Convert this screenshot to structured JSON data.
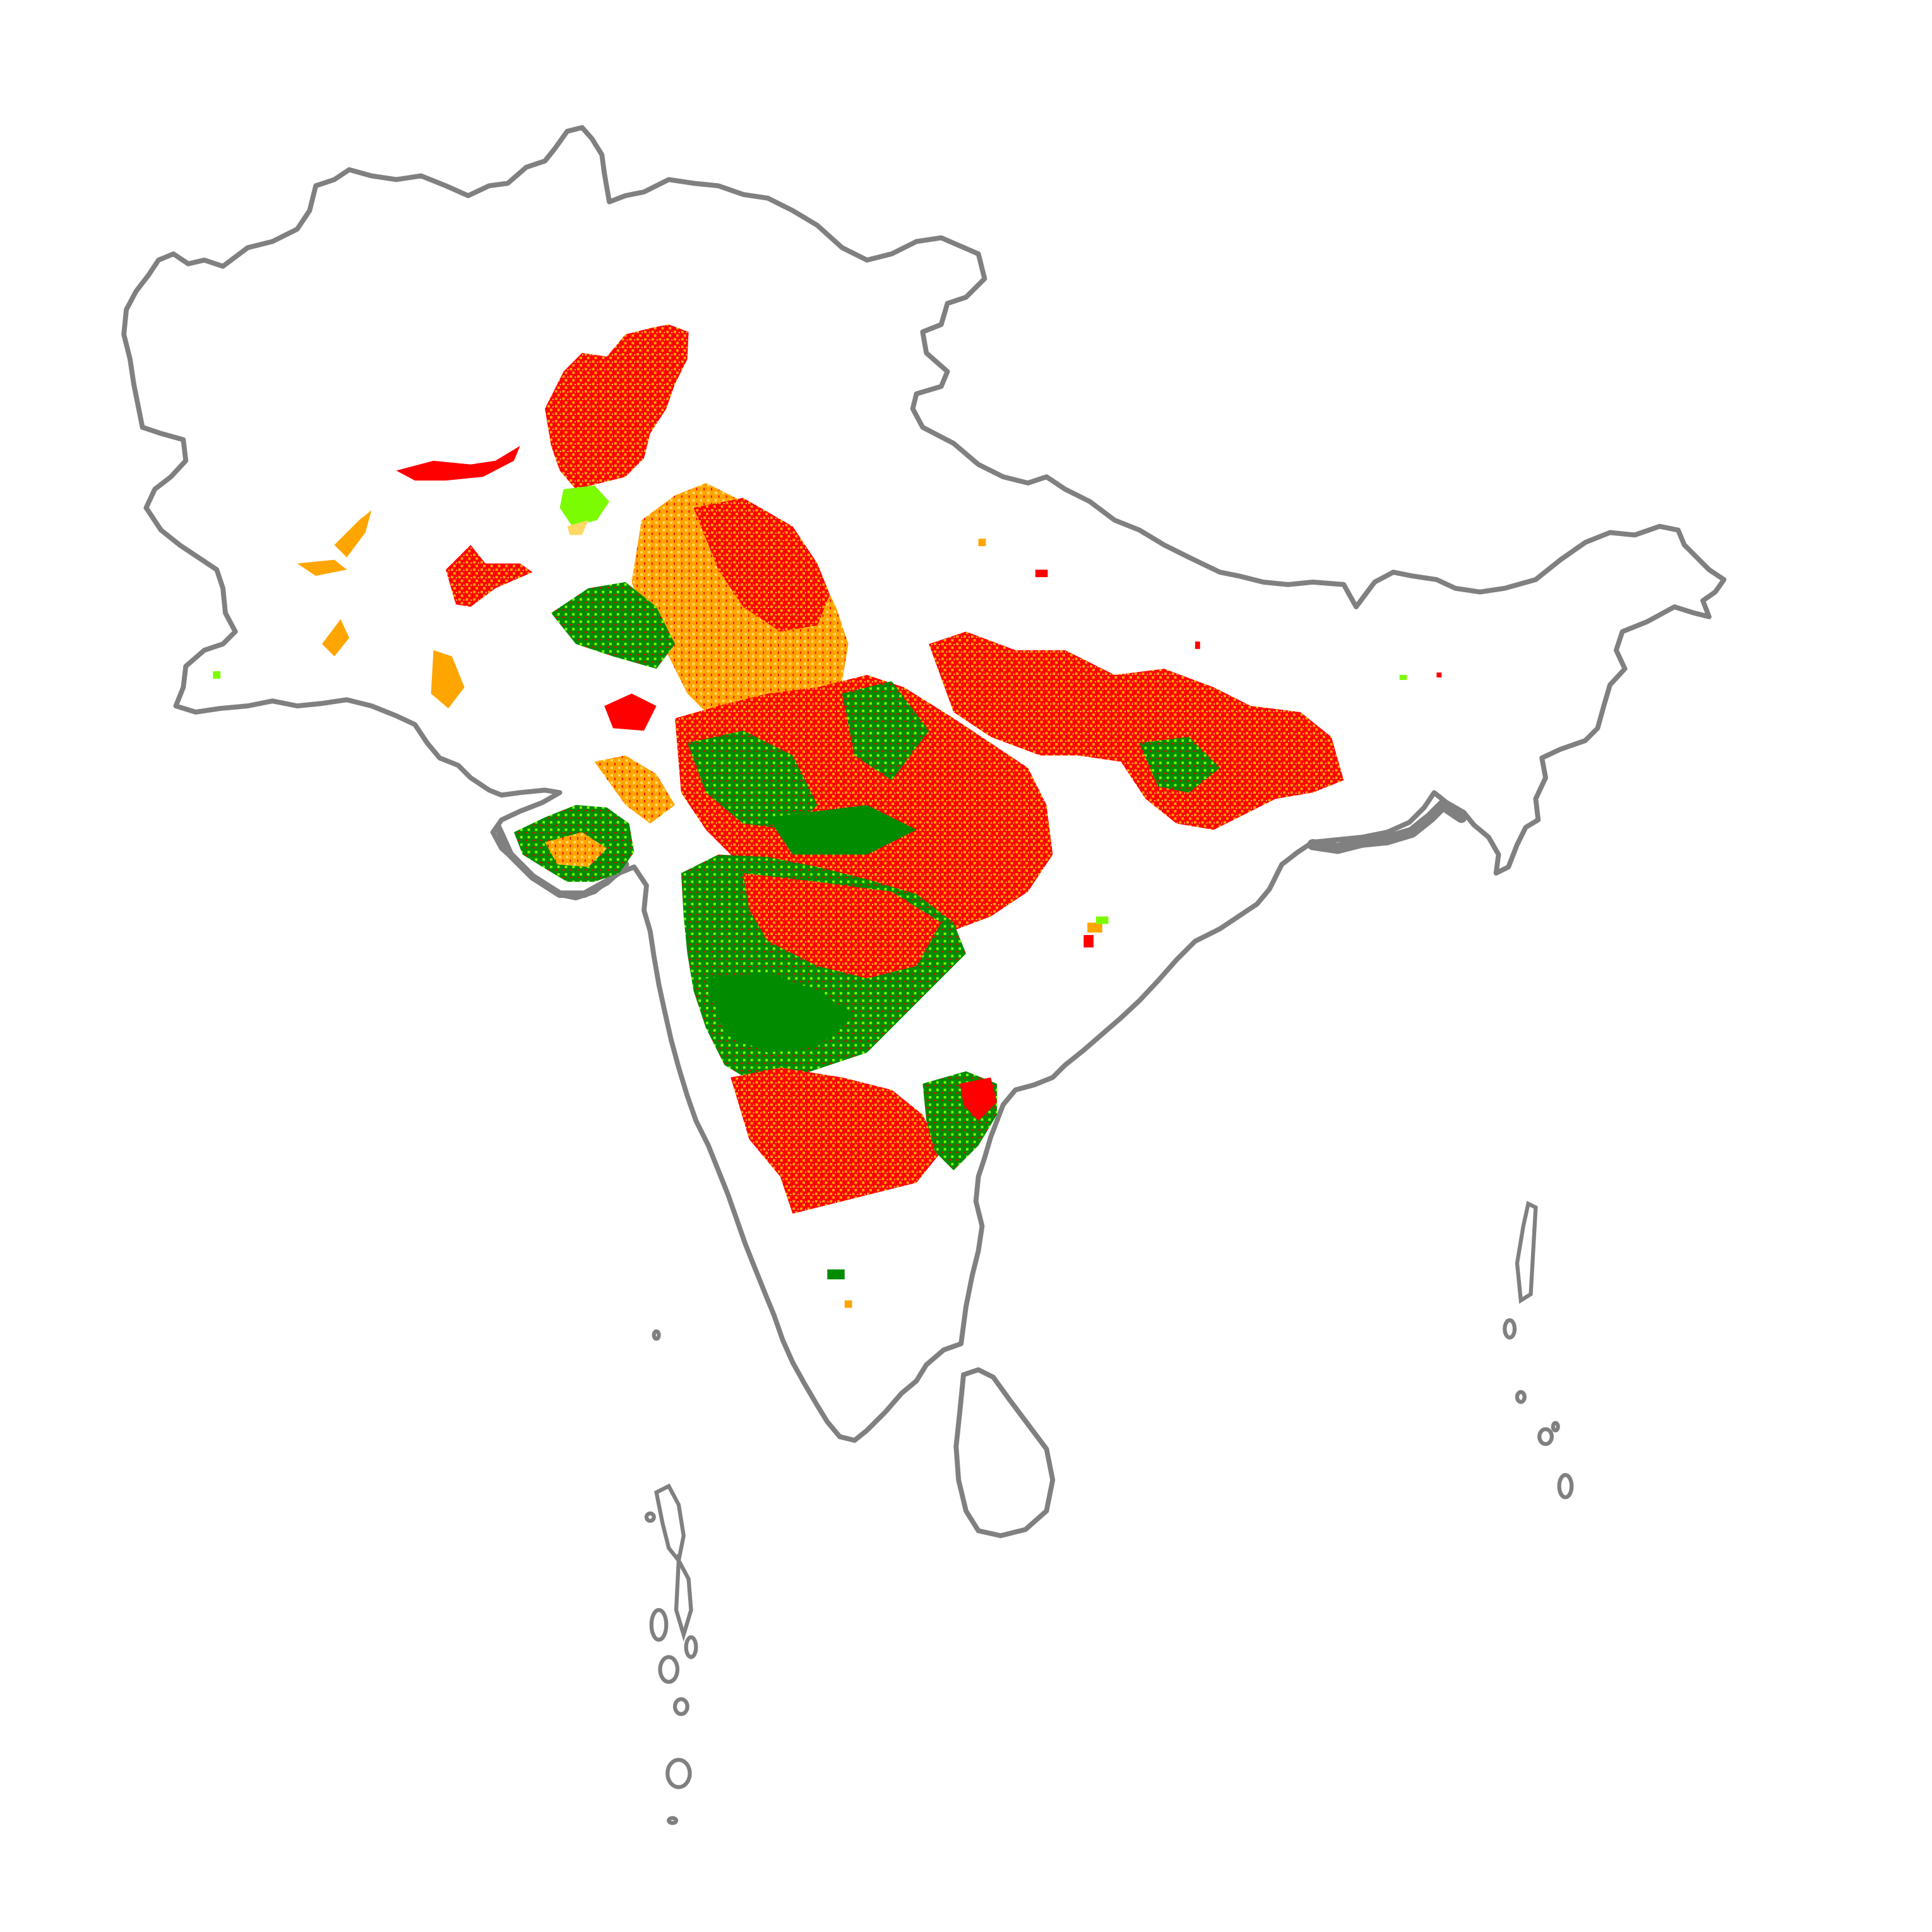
{
  "map": {
    "region": "South Asia",
    "outline_color": "#808080",
    "background_color": "#ffffff",
    "classes": [
      {
        "key": "c1",
        "color": "#ff0000"
      },
      {
        "key": "c2",
        "color": "#ffa500"
      },
      {
        "key": "c3",
        "color": "#ffd966"
      },
      {
        "key": "c4",
        "color": "#7cfc00"
      },
      {
        "key": "c5",
        "color": "#008b00"
      }
    ]
  }
}
